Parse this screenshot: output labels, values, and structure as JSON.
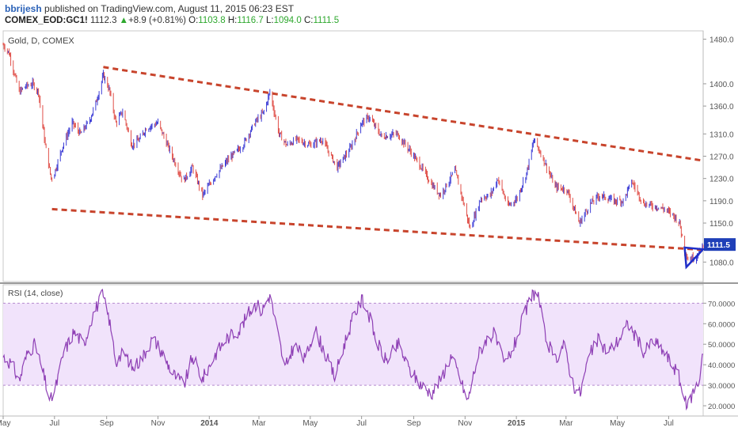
{
  "header": {
    "author": "bbrijesh",
    "published_text": " published on TradingView.com, August 11, 2015 06:23 EST",
    "symbol": "COMEX_EOD:GC1!",
    "last": "1112.3",
    "change_arrow": "▲",
    "change": "+8.9 (+0.81%)",
    "open_label": "O:",
    "open": "1103.8",
    "high_label": "H:",
    "high": "1116.7",
    "low_label": "L:",
    "low": "1094.0",
    "close_label": "C:",
    "close": "1111.5"
  },
  "colors": {
    "up": "#3d3dd6",
    "down": "#e0504a",
    "trendline": "#c8442c",
    "triangle": "#1f2ec8",
    "rsi_line": "#8e3fb5",
    "rsi_band": "#f1e3fb",
    "price_badge": "#1f3fb8"
  },
  "chart_data": [
    {
      "type": "candlestick",
      "title": "Gold, D, COMEX",
      "price_badge": "1111.5",
      "y_ticks": [
        "1480.0",
        "1400.0",
        "1360.0",
        "1310.0",
        "1270.0",
        "1230.0",
        "1190.0",
        "1150.0",
        "1080.0"
      ],
      "x_ticks": [
        "May",
        "Jul",
        "Sep",
        "Nov",
        "2014",
        "Mar",
        "May",
        "Jul",
        "Sep",
        "Nov",
        "2015",
        "Mar",
        "May",
        "Jul"
      ],
      "ylim": [
        1045,
        1495
      ],
      "xlim": [
        "2013-05-01",
        "2015-08-11"
      ],
      "close_path": [
        [
          "2013-05-01",
          1470
        ],
        [
          "2013-05-08",
          1455
        ],
        [
          "2013-05-14",
          1420
        ],
        [
          "2013-05-20",
          1385
        ],
        [
          "2013-05-27",
          1395
        ],
        [
          "2013-06-05",
          1400
        ],
        [
          "2013-06-12",
          1385
        ],
        [
          "2013-06-20",
          1290
        ],
        [
          "2013-06-27",
          1230
        ],
        [
          "2013-07-01",
          1240
        ],
        [
          "2013-07-10",
          1285
        ],
        [
          "2013-07-22",
          1330
        ],
        [
          "2013-08-01",
          1310
        ],
        [
          "2013-08-12",
          1335
        ],
        [
          "2013-08-20",
          1370
        ],
        [
          "2013-08-28",
          1415
        ],
        [
          "2013-09-04",
          1390
        ],
        [
          "2013-09-12",
          1330
        ],
        [
          "2013-09-20",
          1350
        ],
        [
          "2013-10-01",
          1290
        ],
        [
          "2013-10-10",
          1300
        ],
        [
          "2013-10-18",
          1320
        ],
        [
          "2013-11-01",
          1330
        ],
        [
          "2013-11-08",
          1305
        ],
        [
          "2013-11-18",
          1270
        ],
        [
          "2013-12-01",
          1225
        ],
        [
          "2013-12-12",
          1250
        ],
        [
          "2013-12-24",
          1200
        ],
        [
          "2014-01-08",
          1235
        ],
        [
          "2014-01-24",
          1265
        ],
        [
          "2014-02-10",
          1290
        ],
        [
          "2014-02-24",
          1330
        ],
        [
          "2014-03-07",
          1350
        ],
        [
          "2014-03-14",
          1385
        ],
        [
          "2014-03-25",
          1310
        ],
        [
          "2014-04-03",
          1290
        ],
        [
          "2014-04-15",
          1300
        ],
        [
          "2014-05-01",
          1290
        ],
        [
          "2014-05-15",
          1300
        ],
        [
          "2014-06-02",
          1250
        ],
        [
          "2014-06-18",
          1285
        ],
        [
          "2014-07-01",
          1330
        ],
        [
          "2014-07-10",
          1340
        ],
        [
          "2014-07-25",
          1305
        ],
        [
          "2014-08-12",
          1310
        ],
        [
          "2014-08-25",
          1285
        ],
        [
          "2014-09-08",
          1255
        ],
        [
          "2014-09-22",
          1220
        ],
        [
          "2014-10-03",
          1200
        ],
        [
          "2014-10-20",
          1245
        ],
        [
          "2014-11-01",
          1175
        ],
        [
          "2014-11-07",
          1140
        ],
        [
          "2014-11-20",
          1195
        ],
        [
          "2014-12-01",
          1200
        ],
        [
          "2014-12-10",
          1230
        ],
        [
          "2014-12-22",
          1180
        ],
        [
          "2015-01-02",
          1195
        ],
        [
          "2015-01-13",
          1240
        ],
        [
          "2015-01-22",
          1300
        ],
        [
          "2015-02-02",
          1265
        ],
        [
          "2015-02-16",
          1215
        ],
        [
          "2015-03-02",
          1210
        ],
        [
          "2015-03-17",
          1150
        ],
        [
          "2015-03-30",
          1185
        ],
        [
          "2015-04-10",
          1200
        ],
        [
          "2015-04-27",
          1190
        ],
        [
          "2015-05-08",
          1190
        ],
        [
          "2015-05-18",
          1225
        ],
        [
          "2015-06-01",
          1185
        ],
        [
          "2015-06-15",
          1180
        ],
        [
          "2015-06-26",
          1175
        ],
        [
          "2015-07-06",
          1165
        ],
        [
          "2015-07-14",
          1150
        ],
        [
          "2015-07-20",
          1100
        ],
        [
          "2015-07-24",
          1085
        ],
        [
          "2015-08-03",
          1090
        ],
        [
          "2015-08-11",
          1111.5
        ]
      ],
      "upper_trendline": [
        [
          "2013-08-28",
          1430
        ],
        [
          "2015-08-11",
          1262
        ]
      ],
      "lower_trendline": [
        [
          "2013-06-28",
          1175
        ],
        [
          "2015-08-11",
          1102
        ]
      ],
      "triangle": [
        [
          "2015-07-20",
          1106
        ],
        [
          "2015-07-22",
          1071
        ],
        [
          "2015-08-11",
          1103
        ]
      ]
    },
    {
      "type": "line",
      "title": "RSI (14, close)",
      "y_ticks": [
        "70.0000",
        "60.0000",
        "50.0000",
        "40.0000",
        "30.0000",
        "20.0000"
      ],
      "ylim": [
        15,
        79
      ],
      "band": [
        30,
        70
      ],
      "series": [
        [
          "2013-05-01",
          44
        ],
        [
          "2013-05-12",
          40
        ],
        [
          "2013-05-20",
          32
        ],
        [
          "2013-05-30",
          46
        ],
        [
          "2013-06-08",
          50
        ],
        [
          "2013-06-18",
          35
        ],
        [
          "2013-06-26",
          22
        ],
        [
          "2013-07-03",
          30
        ],
        [
          "2013-07-12",
          46
        ],
        [
          "2013-07-24",
          56
        ],
        [
          "2013-08-05",
          50
        ],
        [
          "2013-08-15",
          64
        ],
        [
          "2013-08-27",
          74
        ],
        [
          "2013-09-04",
          62
        ],
        [
          "2013-09-12",
          42
        ],
        [
          "2013-09-22",
          46
        ],
        [
          "2013-10-02",
          38
        ],
        [
          "2013-10-14",
          44
        ],
        [
          "2013-10-26",
          53
        ],
        [
          "2013-11-06",
          46
        ],
        [
          "2013-11-18",
          36
        ],
        [
          "2013-12-02",
          30
        ],
        [
          "2013-12-12",
          44
        ],
        [
          "2013-12-24",
          33
        ],
        [
          "2014-01-08",
          45
        ],
        [
          "2014-01-22",
          53
        ],
        [
          "2014-02-06",
          57
        ],
        [
          "2014-02-18",
          66
        ],
        [
          "2014-02-26",
          70
        ],
        [
          "2014-03-04",
          66
        ],
        [
          "2014-03-14",
          74
        ],
        [
          "2014-03-21",
          60
        ],
        [
          "2014-04-01",
          38
        ],
        [
          "2014-04-12",
          50
        ],
        [
          "2014-04-25",
          42
        ],
        [
          "2014-05-06",
          58
        ],
        [
          "2014-05-20",
          44
        ],
        [
          "2014-05-30",
          34
        ],
        [
          "2014-06-12",
          52
        ],
        [
          "2014-06-22",
          64
        ],
        [
          "2014-07-02",
          72
        ],
        [
          "2014-07-10",
          64
        ],
        [
          "2014-07-18",
          52
        ],
        [
          "2014-07-30",
          42
        ],
        [
          "2014-08-14",
          50
        ],
        [
          "2014-08-26",
          38
        ],
        [
          "2014-09-10",
          30
        ],
        [
          "2014-09-22",
          26
        ],
        [
          "2014-10-02",
          32
        ],
        [
          "2014-10-15",
          44
        ],
        [
          "2014-10-24",
          36
        ],
        [
          "2014-11-04",
          22
        ],
        [
          "2014-11-16",
          44
        ],
        [
          "2014-11-25",
          52
        ],
        [
          "2014-12-05",
          55
        ],
        [
          "2014-12-18",
          40
        ],
        [
          "2014-12-30",
          50
        ],
        [
          "2015-01-10",
          64
        ],
        [
          "2015-01-20",
          74
        ],
        [
          "2015-01-26",
          76
        ],
        [
          "2015-02-04",
          54
        ],
        [
          "2015-02-16",
          42
        ],
        [
          "2015-02-26",
          50
        ],
        [
          "2015-03-10",
          30
        ],
        [
          "2015-03-18",
          26
        ],
        [
          "2015-03-28",
          44
        ],
        [
          "2015-04-08",
          52
        ],
        [
          "2015-04-20",
          46
        ],
        [
          "2015-05-02",
          52
        ],
        [
          "2015-05-14",
          60
        ],
        [
          "2015-05-22",
          54
        ],
        [
          "2015-06-02",
          46
        ],
        [
          "2015-06-12",
          52
        ],
        [
          "2015-06-22",
          48
        ],
        [
          "2015-07-02",
          42
        ],
        [
          "2015-07-12",
          36
        ],
        [
          "2015-07-20",
          22
        ],
        [
          "2015-07-24",
          20
        ],
        [
          "2015-07-31",
          28
        ],
        [
          "2015-08-06",
          32
        ],
        [
          "2015-08-11",
          48
        ]
      ]
    }
  ]
}
